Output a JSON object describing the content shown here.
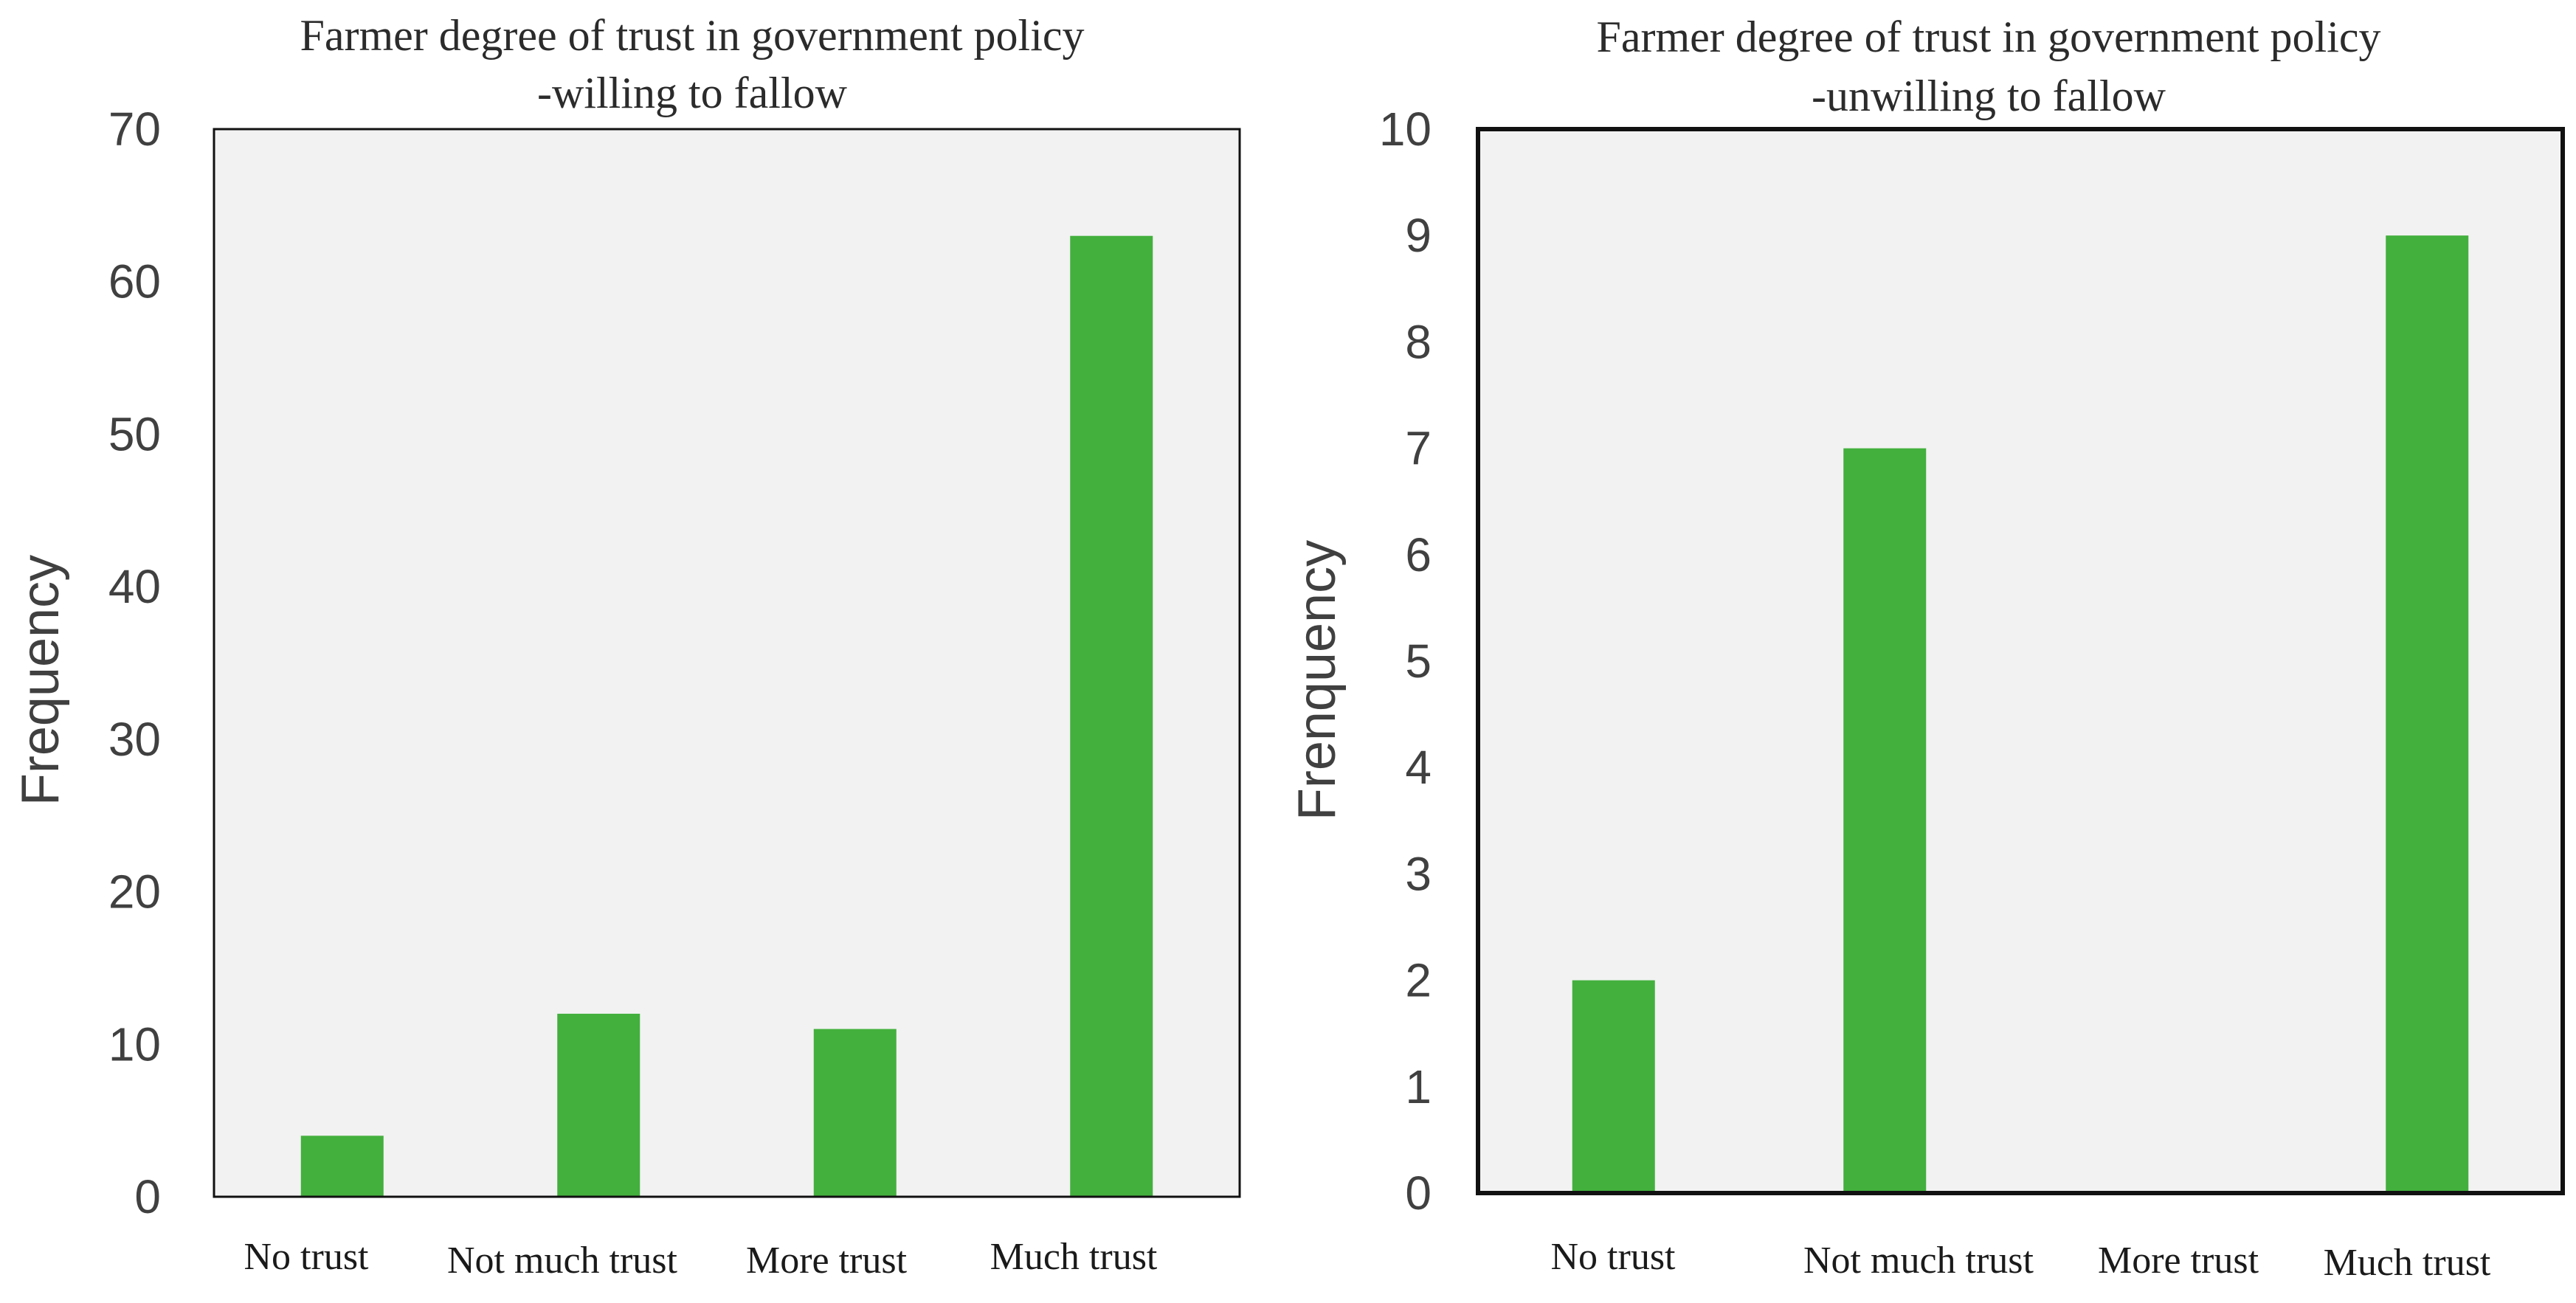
{
  "chart_data": [
    {
      "type": "bar",
      "title": [
        "Farmer degree of trust in government policy",
        "-willing to fallow"
      ],
      "categories": [
        "No trust",
        "Not much trust",
        "More trust",
        "Much trust"
      ],
      "values": [
        4,
        12,
        11,
        63
      ],
      "xlabel": "",
      "ylabel": "Frequency",
      "ylim": [
        0,
        70
      ],
      "yticks": [
        0,
        10,
        20,
        30,
        40,
        50,
        60,
        70
      ],
      "grid": false,
      "bar_color": "#43b03d",
      "plot_background": "#f2f2f2"
    },
    {
      "type": "bar",
      "title": [
        "Farmer degree of trust in government policy",
        "-unwilling to fallow"
      ],
      "categories": [
        "No trust",
        "Not much trust",
        "More trust",
        "Much trust"
      ],
      "values": [
        2,
        7,
        0,
        9
      ],
      "xlabel": "",
      "ylabel": "Frenquency",
      "ylim": [
        0,
        10
      ],
      "yticks": [
        0,
        1,
        2,
        3,
        4,
        5,
        6,
        7,
        8,
        9,
        10
      ],
      "grid": false,
      "bar_color": "#43b03d",
      "plot_background": "#f2f2f2"
    }
  ]
}
